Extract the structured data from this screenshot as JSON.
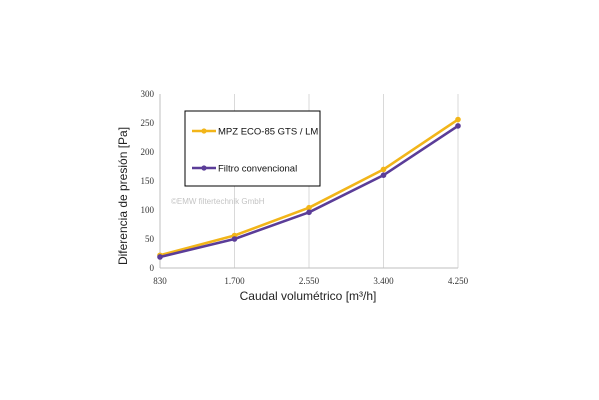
{
  "chart_data": {
    "type": "line",
    "x": [
      "830",
      "1.700",
      "2.550",
      "3.400",
      "4.250"
    ],
    "xlabel": "Caudal volumétrico [m³/h]",
    "ylabel": "Diferencia de presión [Pa]",
    "ylim": [
      0,
      300
    ],
    "yticks": [
      "0",
      "50",
      "100",
      "150",
      "200",
      "250",
      "300"
    ],
    "grid": "vertical",
    "legend_position": "top-left",
    "series": [
      {
        "name": "MPZ ECO-85 GTS / LM",
        "color": "#F2B519",
        "values": [
          22,
          56,
          104,
          170,
          256
        ]
      },
      {
        "name": "Filtro convencional",
        "color": "#5B3D98",
        "values": [
          19,
          50,
          96,
          160,
          245
        ]
      }
    ],
    "watermark": "©EMW filtertechnik GmbH"
  }
}
